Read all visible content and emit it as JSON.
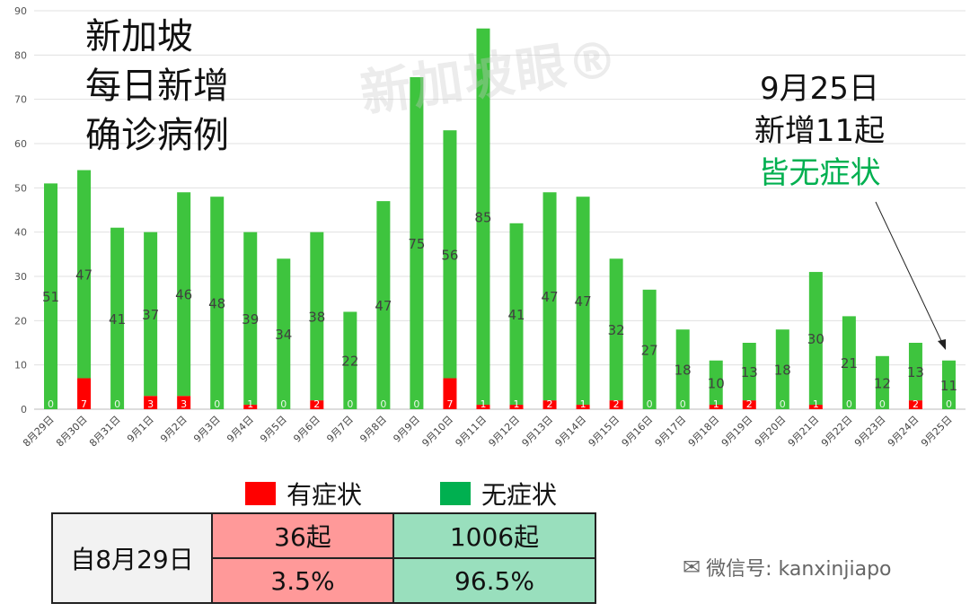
{
  "title_lines": [
    "新加坡",
    "每日新增",
    "确诊病例"
  ],
  "annotation": {
    "line1": "9月25日",
    "line2": "新增11起",
    "line3": "皆无症状"
  },
  "watermark": "新加坡眼®",
  "legend": [
    {
      "label": "有症状",
      "color": "#ff0000"
    },
    {
      "label": "无症状",
      "color": "#00b050"
    }
  ],
  "summary_table": {
    "row_header": "自8月29日",
    "symptomatic_count": "36起",
    "asymptomatic_count": "1006起",
    "symptomatic_pct": "3.5%",
    "asymptomatic_pct": "96.5%"
  },
  "wechat_label": "微信号: kanxinjiapo",
  "chart_data": {
    "type": "bar",
    "stacked": true,
    "categories": [
      "8月29日",
      "8月30日",
      "8月31日",
      "9月1日",
      "9月2日",
      "9月3日",
      "9月4日",
      "9月5日",
      "9月6日",
      "9月7日",
      "9月8日",
      "9月9日",
      "9月10日",
      "9月11日",
      "9月12日",
      "9月13日",
      "9月14日",
      "9月15日",
      "9月16日",
      "9月17日",
      "9月18日",
      "9月19日",
      "9月20日",
      "9月21日",
      "9月22日",
      "9月23日",
      "9月24日",
      "9月25日"
    ],
    "series": [
      {
        "name": "有症状",
        "color": "#ff0000",
        "values": [
          0,
          7,
          0,
          3,
          3,
          0,
          1,
          0,
          2,
          0,
          0,
          0,
          7,
          1,
          1,
          2,
          1,
          2,
          0,
          0,
          1,
          2,
          0,
          1,
          0,
          0,
          2,
          0
        ]
      },
      {
        "name": "无症状",
        "color": "#3ec43e",
        "values": [
          51,
          47,
          41,
          37,
          46,
          48,
          39,
          34,
          38,
          22,
          47,
          75,
          56,
          85,
          41,
          47,
          47,
          32,
          27,
          18,
          10,
          13,
          18,
          30,
          21,
          12,
          13,
          11
        ]
      }
    ],
    "ylim": [
      0,
      90
    ],
    "yticks": [
      0,
      10,
      20,
      30,
      40,
      50,
      60,
      70,
      80,
      90
    ],
    "grid": true,
    "legend_position": "bottom"
  }
}
